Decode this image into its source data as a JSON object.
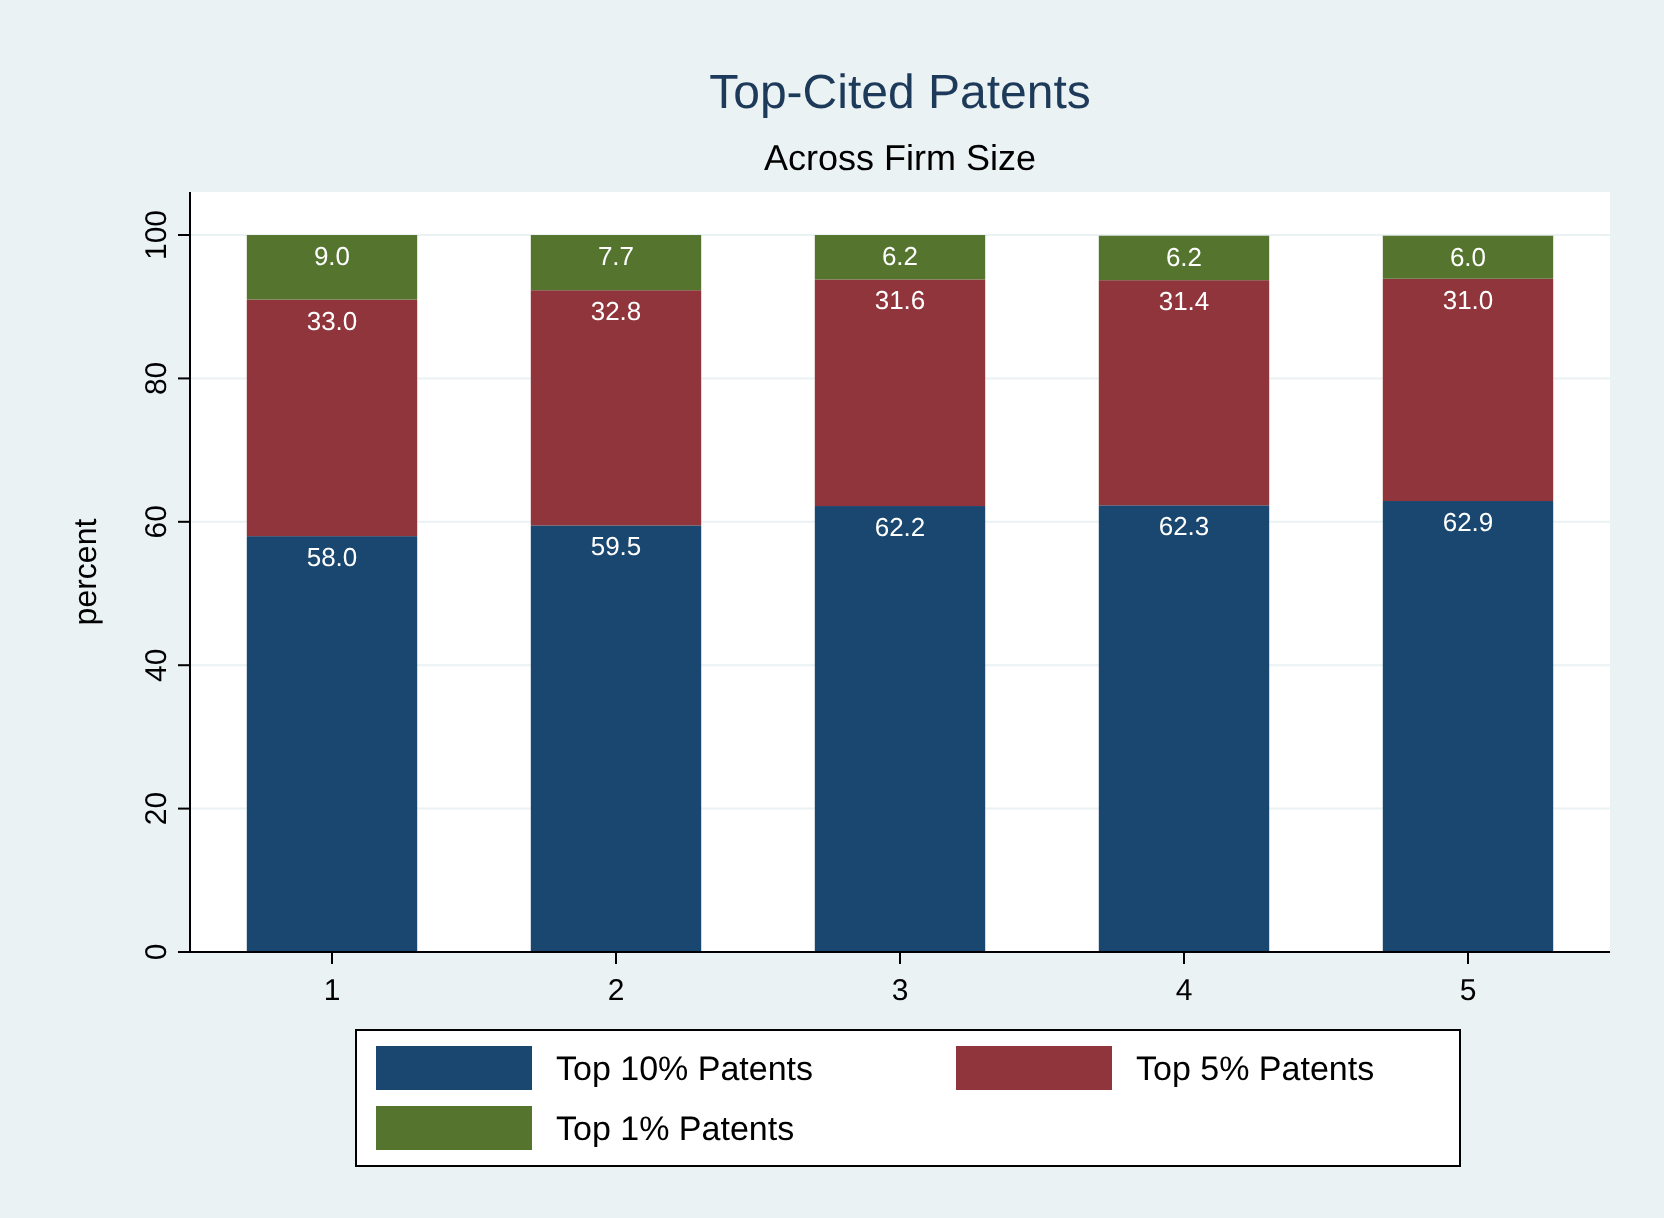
{
  "chart_data": {
    "type": "bar",
    "title": "Top-Cited Patents",
    "subtitle": "Across Firm Size",
    "ylabel": "percent",
    "categories": [
      "1",
      "2",
      "3",
      "4",
      "5"
    ],
    "stacked": true,
    "grid": "y",
    "legend": "bottom",
    "ylim": [
      0,
      106
    ],
    "yticks": [
      0,
      20,
      40,
      60,
      80,
      100
    ],
    "series": [
      {
        "name": "Top 10% Patents",
        "color": "#1a476f",
        "values": [
          58.0,
          59.5,
          62.2,
          62.3,
          62.9
        ],
        "value_labels": [
          "58.0",
          "59.5",
          "62.2",
          "62.3",
          "62.9"
        ]
      },
      {
        "name": "Top 5% Patents",
        "color": "#90353b",
        "values": [
          33.0,
          32.8,
          31.6,
          31.4,
          31.0
        ],
        "value_labels": [
          "33.0",
          "32.8",
          "31.6",
          "31.4",
          "31.0"
        ]
      },
      {
        "name": "Top 1% Patents",
        "color": "#55752f",
        "values": [
          9.0,
          7.7,
          6.2,
          6.2,
          6.0
        ],
        "value_labels": [
          "9.0",
          "7.7",
          "6.2",
          "6.2",
          "6.0"
        ]
      }
    ]
  }
}
